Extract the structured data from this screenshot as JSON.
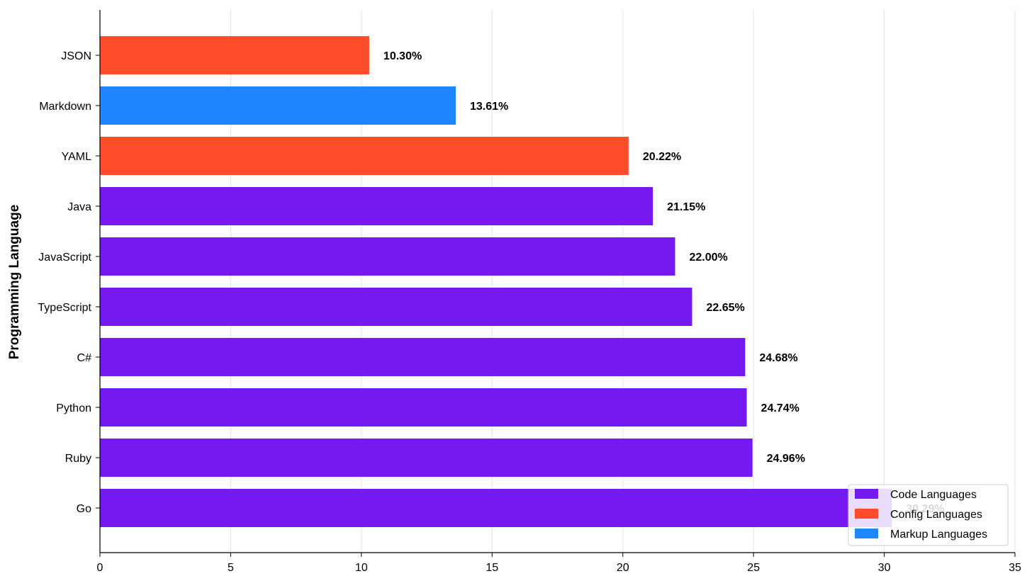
{
  "chart_data": {
    "type": "bar",
    "orientation": "horizontal",
    "title": "",
    "xlabel": "",
    "ylabel": "Programming Language",
    "xlim": [
      0,
      35
    ],
    "xticks": [
      0,
      5,
      10,
      15,
      20,
      25,
      30,
      35
    ],
    "grid": "vertical",
    "legend_position": "lower-right",
    "categories": [
      "JSON",
      "Markdown",
      "YAML",
      "Java",
      "JavaScript",
      "TypeScript",
      "C#",
      "Python",
      "Ruby",
      "Go"
    ],
    "values": [
      10.3,
      13.61,
      20.22,
      21.15,
      22.0,
      22.65,
      24.68,
      24.74,
      24.96,
      30.29
    ],
    "value_labels": [
      "10.30%",
      "13.61%",
      "20.22%",
      "21.15%",
      "22.00%",
      "22.65%",
      "24.68%",
      "24.74%",
      "24.96%",
      "30.29%"
    ],
    "groups": [
      "config",
      "markup",
      "config",
      "code",
      "code",
      "code",
      "code",
      "code",
      "code",
      "code"
    ],
    "legend": [
      {
        "key": "code",
        "label": "Code Languages",
        "color": "#7519f0"
      },
      {
        "key": "config",
        "label": "Config Languages",
        "color": "#ff4d2b"
      },
      {
        "key": "markup",
        "label": "Markup Languages",
        "color": "#1f86ff"
      }
    ]
  }
}
